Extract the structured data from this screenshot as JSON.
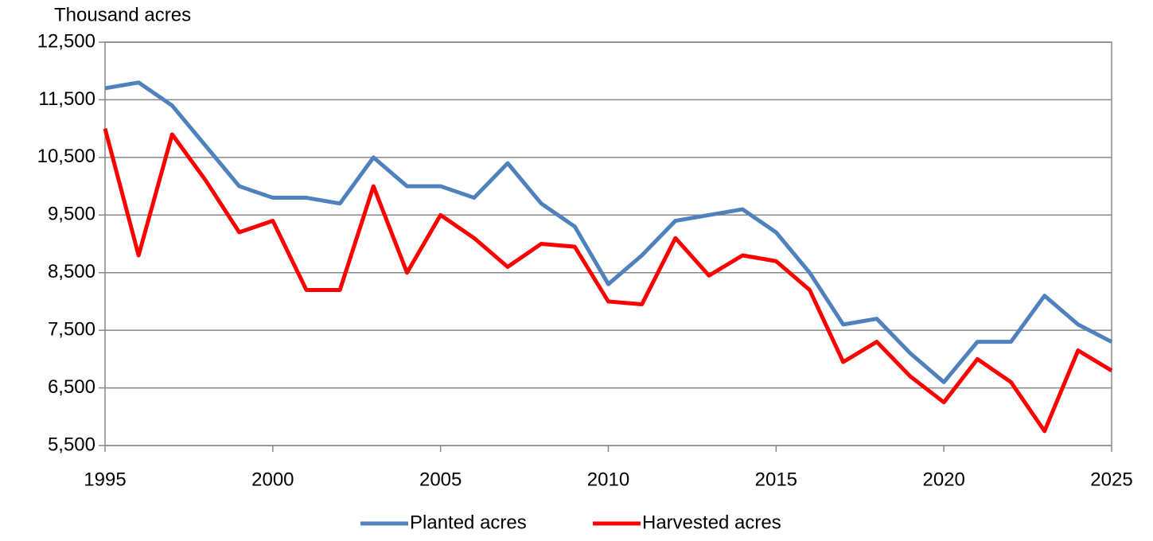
{
  "chart_data": {
    "type": "line",
    "y_label": "Thousand acres",
    "x": [
      1995,
      1996,
      1997,
      1998,
      1999,
      2000,
      2001,
      2002,
      2003,
      2004,
      2005,
      2006,
      2007,
      2008,
      2009,
      2010,
      2011,
      2012,
      2013,
      2014,
      2015,
      2016,
      2017,
      2018,
      2019,
      2020,
      2021,
      2022,
      2023,
      2024,
      2025
    ],
    "series": [
      {
        "name": "Planted acres",
        "color": "#4f81bd",
        "values": [
          11700,
          11800,
          11400,
          10700,
          10000,
          9800,
          9800,
          9700,
          10500,
          10000,
          10000,
          9800,
          10400,
          9700,
          9300,
          8300,
          8800,
          9400,
          9500,
          9600,
          9200,
          8500,
          7600,
          7700,
          7100,
          6600,
          7300,
          7300,
          8100,
          7600,
          7300
        ]
      },
      {
        "name": "Harvested acres",
        "color": "#ff0000",
        "values": [
          11000,
          8800,
          10900,
          10100,
          9200,
          9400,
          8200,
          8200,
          10000,
          8500,
          9500,
          9100,
          8600,
          9000,
          8950,
          8000,
          7950,
          9100,
          8450,
          8800,
          8700,
          8200,
          6950,
          7300,
          6700,
          6250,
          7000,
          6600,
          5750,
          7150,
          6800
        ]
      }
    ],
    "xlim": [
      1995,
      2025
    ],
    "xticks": [
      1995,
      2000,
      2005,
      2010,
      2015,
      2020,
      2025
    ],
    "ylim": [
      5500,
      12500
    ],
    "yticks": [
      {
        "value": 5500,
        "label": "5,500"
      },
      {
        "value": 6500,
        "label": "6,500"
      },
      {
        "value": 7500,
        "label": "7,500"
      },
      {
        "value": 8500,
        "label": "8,500"
      },
      {
        "value": 9500,
        "label": "9,500"
      },
      {
        "value": 10500,
        "label": "10,500"
      },
      {
        "value": 11500,
        "label": "11,500"
      },
      {
        "value": 12500,
        "label": "12,500"
      }
    ],
    "grid": true,
    "legend": "bottom"
  }
}
